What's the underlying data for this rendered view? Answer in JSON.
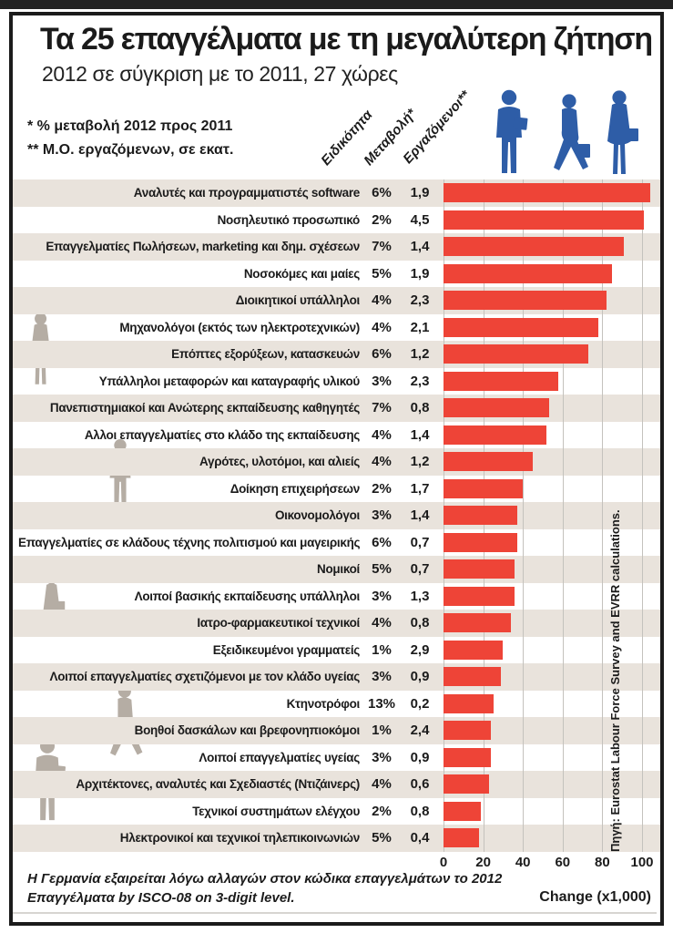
{
  "header": {
    "title": "Τα 25 επαγγέλματα με τη μεγαλύτερη ζήτηση",
    "subtitle": "2012 σε σύγκριση με το 2011, 27 χώρες",
    "footnote_change": "* % μεταβολή 2012 προς 2011",
    "footnote_workers": "** Μ.Ο. εργαζόμενων, σε εκατ.",
    "col_specialty": "Ειδικότητα",
    "col_change": "Μεταβολή*",
    "col_workers": "Εργαζόμενοι**"
  },
  "source": "Πηγή: Eurostat Labour Force Survey and EVRR calculations.",
  "footer": {
    "line1": "Η Γερμανία εξαιρείται λόγω αλλαγών στον κώδικα επαγγελμάτων το 2012",
    "line2": "Επαγγέλματα by ISCO-08 on 3-digit level."
  },
  "colors": {
    "bar": "#ee4437",
    "stripe": "#e9e3dc",
    "figure_blue": "#2e5da7",
    "figure_gray": "#b5ada4"
  },
  "icons": {
    "top_figures": [
      "man-with-document",
      "woman-walking",
      "woman-standing"
    ],
    "margin_figures": [
      "woman-standing-with-bag",
      "man-standing",
      "woman-standing-with-bag",
      "woman-walking",
      "man-standing-with-briefcase"
    ]
  },
  "chart_data": {
    "type": "bar",
    "orientation": "horizontal",
    "title": "Τα 25 επαγγέλματα με τη μεγαλύτερη ζήτηση",
    "subtitle": "2012 σε σύγκριση με το 2011, 27 χώρες",
    "xlabel": "Change (x1,000)",
    "xlim": [
      0,
      100
    ],
    "xticks": [
      0,
      20,
      40,
      60,
      80,
      100
    ],
    "grid": true,
    "rows": [
      {
        "label": "Αναλυτές και προγραμματιστές software",
        "change": "6%",
        "workers": "1,9",
        "value": 104
      },
      {
        "label": "Νοσηλευτικό προσωπικό",
        "change": "2%",
        "workers": "4,5",
        "value": 101
      },
      {
        "label": "Επαγγελματίες Πωλήσεων, marketing και δημ. σχέσεων",
        "change": "7%",
        "workers": "1,4",
        "value": 91
      },
      {
        "label": "Νοσοκόμες και μαίες",
        "change": "5%",
        "workers": "1,9",
        "value": 85
      },
      {
        "label": "Διοικητικοί υπάλληλοι",
        "change": "4%",
        "workers": "2,3",
        "value": 82
      },
      {
        "label": "Μηχανολόγοι (εκτός των ηλεκτροτεχνικών)",
        "change": "4%",
        "workers": "2,1",
        "value": 78
      },
      {
        "label": "Επόπτες εξορύξεων, κατασκευών",
        "change": "6%",
        "workers": "1,2",
        "value": 73
      },
      {
        "label": "Υπάλληλοι μεταφορών και καταγραφής υλικού",
        "change": "3%",
        "workers": "2,3",
        "value": 58
      },
      {
        "label": "Πανεπιστημιακοί και Ανώτερης εκπαίδευσης καθηγητές",
        "change": "7%",
        "workers": "0,8",
        "value": 53
      },
      {
        "label": "Αλλοι επαγγελματίες στο κλάδο της εκπαίδευσης",
        "change": "4%",
        "workers": "1,4",
        "value": 52
      },
      {
        "label": "Αγρότες, υλοτόμοι, και αλιείς",
        "change": "4%",
        "workers": "1,2",
        "value": 45
      },
      {
        "label": "Δοίκηση επιχειρήσεων",
        "change": "2%",
        "workers": "1,7",
        "value": 40
      },
      {
        "label": "Οικονομολόγοι",
        "change": "3%",
        "workers": "1,4",
        "value": 37
      },
      {
        "label": "Επαγγελματίες σε κλάδους τέχνης πολιτισμού και μαγειρικής",
        "change": "6%",
        "workers": "0,7",
        "value": 37
      },
      {
        "label": "Νομικοί",
        "change": "5%",
        "workers": "0,7",
        "value": 36
      },
      {
        "label": "Λοιποί βασικής εκπαίδευσης υπάλληλοι",
        "change": "3%",
        "workers": "1,3",
        "value": 36
      },
      {
        "label": "Ιατρο-φαρμακευτικοί τεχνικοί",
        "change": "4%",
        "workers": "0,8",
        "value": 34
      },
      {
        "label": "Εξειδικευμένοι γραμματείς",
        "change": "1%",
        "workers": "2,9",
        "value": 30
      },
      {
        "label": "Λοιποί επαγγελματίες σχετιζόμενοι με τον κλάδο υγείας",
        "change": "3%",
        "workers": "0,9",
        "value": 29
      },
      {
        "label": "Κτηνοτρόφοι",
        "change": "13%",
        "workers": "0,2",
        "value": 25
      },
      {
        "label": "Βοηθοί δασκάλων και βρεφονηπιοκόμοι",
        "change": "1%",
        "workers": "2,4",
        "value": 24
      },
      {
        "label": "Λοιποί επαγγελματίες υγείας",
        "change": "3%",
        "workers": "0,9",
        "value": 24
      },
      {
        "label": "Αρχιτέκτονες, αναλυτές και Σχεδιαστές (Ντιζάινερς)",
        "change": "4%",
        "workers": "0,6",
        "value": 23
      },
      {
        "label": "Τεχνικοί συστημάτων ελέγχου",
        "change": "2%",
        "workers": "0,8",
        "value": 19
      },
      {
        "label": "Ηλεκτρονικοί και τεχνικοί τηλεπικοινωνιών",
        "change": "5%",
        "workers": "0,4",
        "value": 18
      }
    ]
  }
}
